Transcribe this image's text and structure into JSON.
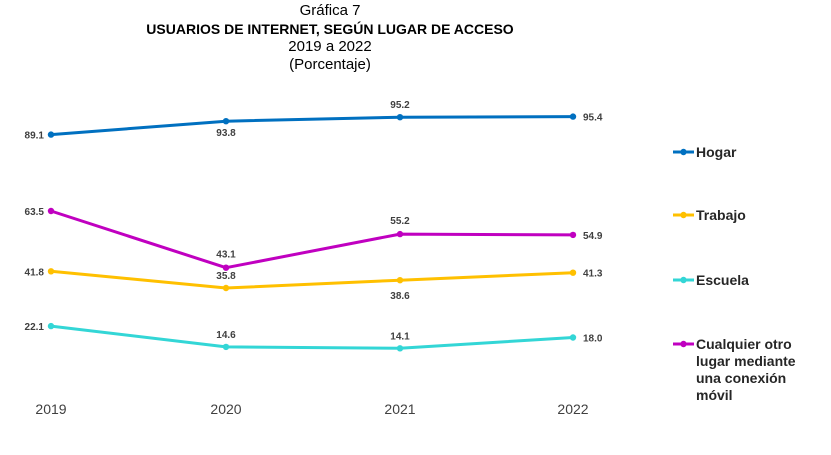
{
  "header": {
    "number": "Gráfica 7",
    "title": "USUARIOS DE INTERNET, SEGÚN LUGAR DE ACCESO",
    "period": "2019 a 2022",
    "unit": "(Porcentaje)"
  },
  "chart_data": {
    "type": "line",
    "categories": [
      "2019",
      "2020",
      "2021",
      "2022"
    ],
    "ylim": [
      0,
      100
    ],
    "grid": false,
    "legend_position": "right",
    "series": [
      {
        "name": "Hogar",
        "color": "#0070C0",
        "values": [
          89.1,
          93.8,
          95.2,
          95.4
        ],
        "labels": [
          "89.1",
          "93.8",
          "95.2",
          "95.4"
        ],
        "legend_lines": [
          "Hogar"
        ]
      },
      {
        "name": "Trabajo",
        "color": "#FFC000",
        "values": [
          41.8,
          35.8,
          38.6,
          41.3
        ],
        "labels": [
          "41.8",
          "35.8",
          "38.6",
          "41.3"
        ],
        "legend_lines": [
          "Trabajo"
        ]
      },
      {
        "name": "Escuela",
        "color": "#33D6D6",
        "values": [
          22.1,
          14.6,
          14.1,
          18.0
        ],
        "labels": [
          "22.1",
          "14.6",
          "14.1",
          "18.0"
        ],
        "legend_lines": [
          "Escuela"
        ]
      },
      {
        "name": "Cualquier otro lugar mediante una conexión móvil",
        "color": "#C000C0",
        "values": [
          63.5,
          43.1,
          55.2,
          54.9
        ],
        "labels": [
          "63.5",
          "43.1",
          "55.2",
          "54.9"
        ],
        "legend_lines": [
          "Cualquier otro",
          "lugar mediante",
          "una conexión",
          "móvil"
        ]
      }
    ]
  }
}
